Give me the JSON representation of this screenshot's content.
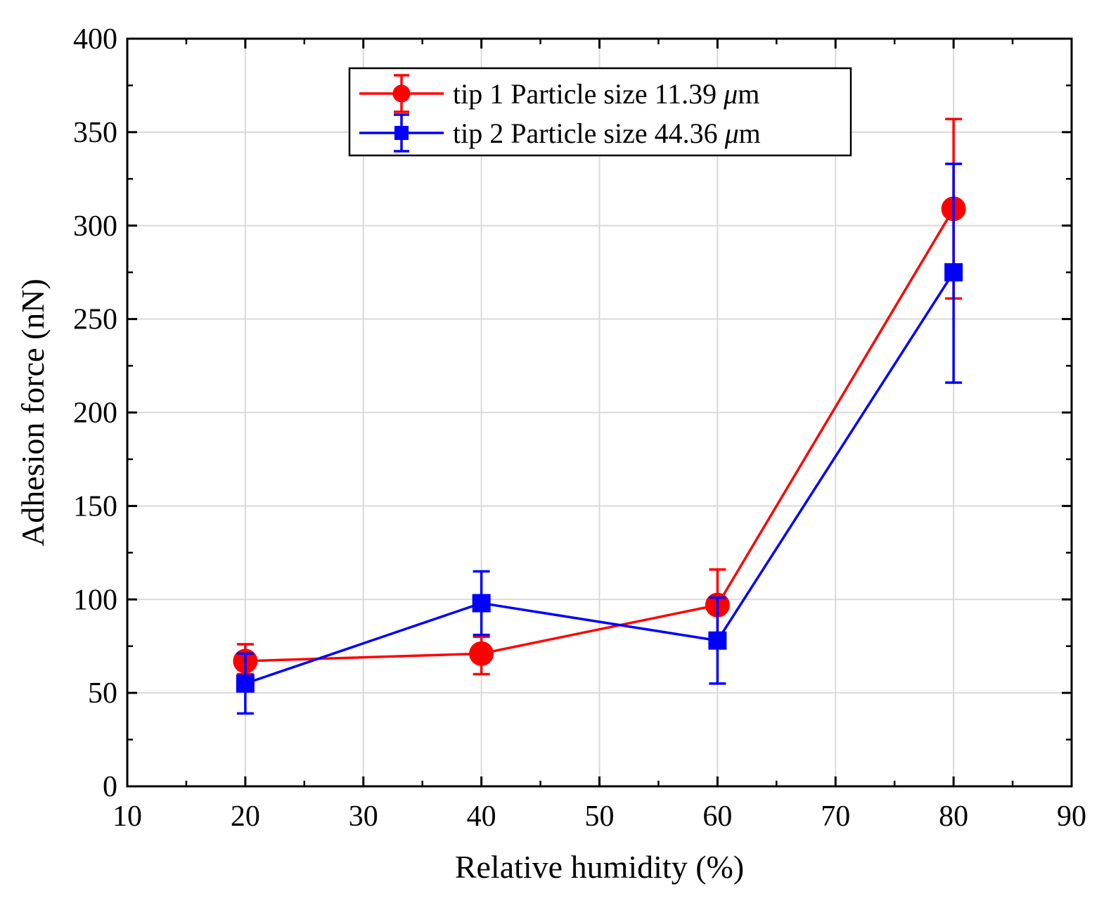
{
  "chart_data": {
    "type": "line",
    "title": "",
    "xlabel": "Relative humidity (%)",
    "ylabel": "Adhesion force (nN)",
    "xlim": [
      10,
      90
    ],
    "ylim": [
      0,
      400
    ],
    "xticks": [
      10,
      20,
      30,
      40,
      50,
      60,
      70,
      80,
      90
    ],
    "yticks": [
      0,
      50,
      100,
      150,
      200,
      250,
      300,
      350,
      400
    ],
    "grid": true,
    "legend_position": "top-center",
    "series": [
      {
        "name": "tip 1 Particle size 11.39 μm",
        "label_prefix": "tip 1 Particle size 11.39 ",
        "label_unit_italic": "μ",
        "label_unit_rest": "m",
        "color": "#ff0000",
        "marker": "circle",
        "x": [
          20,
          40,
          60,
          80
        ],
        "y": [
          67,
          71,
          97,
          309
        ],
        "err_low": [
          60,
          60,
          78,
          261
        ],
        "err_high": [
          76,
          80,
          116,
          357
        ]
      },
      {
        "name": "tip 2 Particle size 44.36 μm",
        "label_prefix": "tip 2 Particle size 44.36 ",
        "label_unit_italic": "μ",
        "label_unit_rest": "m",
        "color": "#0000ff",
        "marker": "square",
        "x": [
          20,
          40,
          60,
          80
        ],
        "y": [
          55,
          98,
          78,
          275
        ],
        "err_low": [
          39,
          81,
          55,
          216
        ],
        "err_high": [
          71,
          115,
          101,
          333
        ]
      }
    ]
  }
}
